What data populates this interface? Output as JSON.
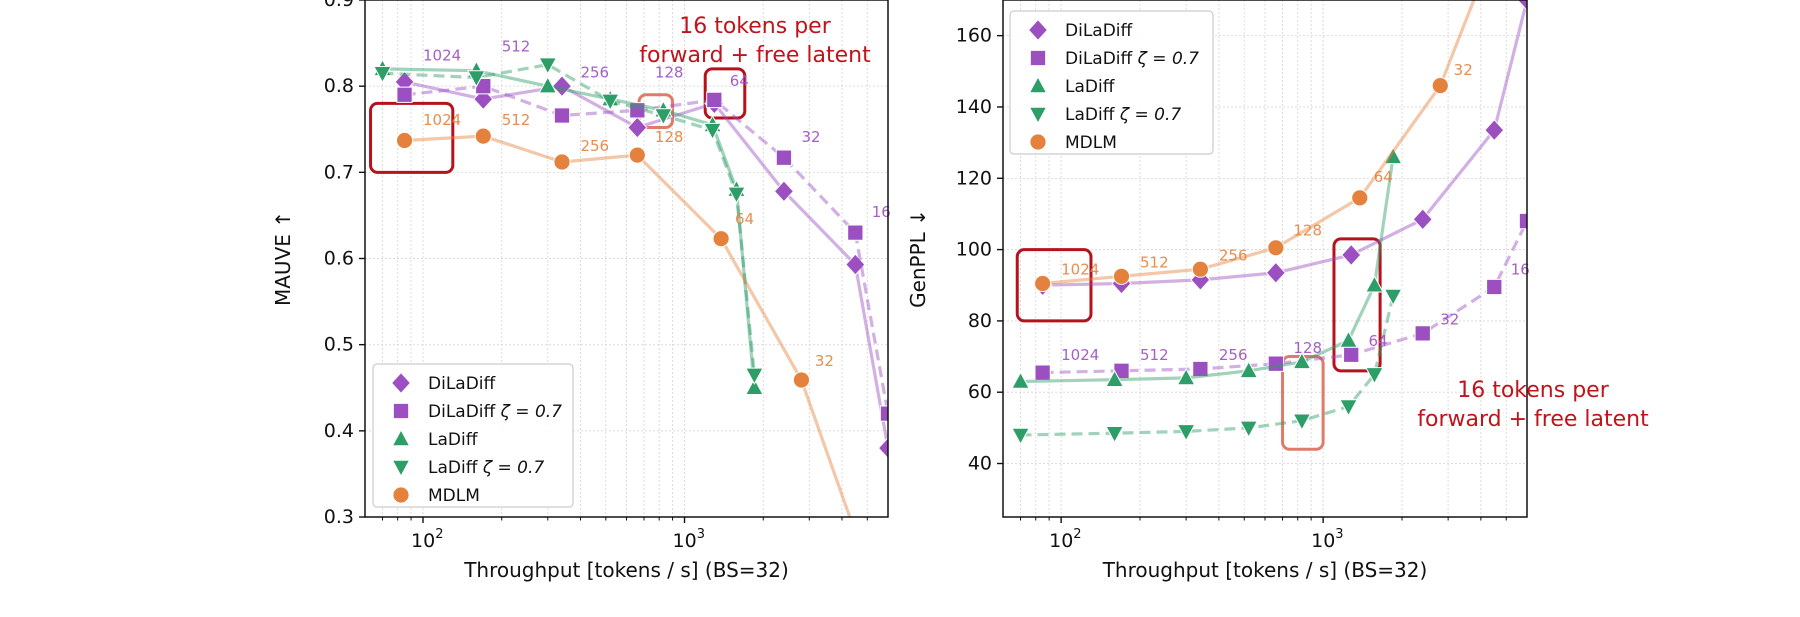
{
  "chart_data": [
    {
      "type": "line",
      "xscale": "log",
      "xlim": [
        60,
        6000
      ],
      "ylim": [
        0.3,
        0.9
      ],
      "xlabel": "Throughput [tokens / s]  (BS=32)",
      "ylabel": "MAUVE ↑",
      "xticks": [
        {
          "v": 100,
          "base": "10",
          "exp": "2"
        },
        {
          "v": 1000,
          "base": "10",
          "exp": "3"
        }
      ],
      "yticks": [
        0.3,
        0.4,
        0.5,
        0.6,
        0.7,
        0.8,
        0.9
      ],
      "grid": true,
      "legend_position": "bottom-left",
      "series": [
        {
          "name": "DiLaDiff",
          "name_suffix": "",
          "marker": "diamond",
          "color": "#9b4fc0",
          "dash": false,
          "x": [
            85,
            170,
            340,
            660,
            1300,
            2400,
            4500,
            6000
          ],
          "y": [
            0.805,
            0.785,
            0.8,
            0.752,
            0.78,
            0.678,
            0.593,
            0.38
          ]
        },
        {
          "name": "DiLaDiff",
          "name_suffix": "ζ = 0.7",
          "marker": "square",
          "color": "#9b4fc0",
          "dash": true,
          "x": [
            85,
            170,
            340,
            660,
            1300,
            2400,
            4500,
            6000
          ],
          "y": [
            0.79,
            0.8,
            0.766,
            0.772,
            0.784,
            0.717,
            0.63,
            0.42
          ]
        },
        {
          "name": "LaDiff",
          "name_suffix": "",
          "marker": "triangle-up",
          "color": "#2e9e68",
          "dash": false,
          "x": [
            70,
            160,
            300,
            520,
            830,
            1280,
            1580,
            1850
          ],
          "y": [
            0.82,
            0.818,
            0.8,
            0.785,
            0.772,
            0.755,
            0.68,
            0.45
          ]
        },
        {
          "name": "LaDiff",
          "name_suffix": "ζ = 0.7",
          "marker": "triangle-down",
          "color": "#2e9e68",
          "dash": true,
          "x": [
            70,
            160,
            300,
            520,
            830,
            1280,
            1580,
            1850
          ],
          "y": [
            0.815,
            0.81,
            0.825,
            0.783,
            0.766,
            0.749,
            0.675,
            0.465
          ]
        },
        {
          "name": "MDLM",
          "name_suffix": "",
          "marker": "circle",
          "color": "#e4823d",
          "dash": false,
          "x": [
            85,
            170,
            340,
            660,
            1380,
            2800,
            4400
          ],
          "y": [
            0.737,
            0.742,
            0.712,
            0.72,
            0.623,
            0.459,
            0.29
          ]
        }
      ],
      "point_labels": [
        {
          "text": "1024",
          "x": 100,
          "y": 0.83,
          "color": "#9b4fc0"
        },
        {
          "text": "512",
          "x": 200,
          "y": 0.84,
          "color": "#9b4fc0"
        },
        {
          "text": "256",
          "x": 400,
          "y": 0.81,
          "color": "#9b4fc0"
        },
        {
          "text": "128",
          "x": 770,
          "y": 0.81,
          "color": "#9b4fc0"
        },
        {
          "text": "64",
          "x": 1490,
          "y": 0.8,
          "color": "#9b4fc0"
        },
        {
          "text": "32",
          "x": 2800,
          "y": 0.735,
          "color": "#9b4fc0"
        },
        {
          "text": "16",
          "x": 5200,
          "y": 0.648,
          "color": "#9b4fc0"
        },
        {
          "text": "1024",
          "x": 100,
          "y": 0.755,
          "color": "#e4823d"
        },
        {
          "text": "512",
          "x": 200,
          "y": 0.755,
          "color": "#e4823d"
        },
        {
          "text": "256",
          "x": 400,
          "y": 0.725,
          "color": "#e4823d"
        },
        {
          "text": "128",
          "x": 770,
          "y": 0.735,
          "color": "#e4823d"
        },
        {
          "text": "64",
          "x": 1560,
          "y": 0.64,
          "color": "#e4823d"
        },
        {
          "text": "32",
          "x": 3150,
          "y": 0.475,
          "color": "#e4823d"
        }
      ],
      "highlight_boxes": [
        {
          "x0": 63,
          "x1": 130,
          "y0": 0.7,
          "y1": 0.78,
          "color": "#b5121b"
        },
        {
          "x0": 670,
          "x1": 900,
          "y0": 0.752,
          "y1": 0.79,
          "color": "#e07a6a"
        },
        {
          "x0": 1200,
          "x1": 1700,
          "y0": 0.763,
          "y1": 0.82,
          "color": "#b5121b"
        }
      ],
      "annotation": {
        "lines": [
          "16 tokens per",
          "forward + free latent"
        ],
        "color": "#c0141c",
        "position": "top-right"
      }
    },
    {
      "type": "line",
      "xscale": "log",
      "xlim": [
        60,
        6000
      ],
      "ylim": [
        25,
        170
      ],
      "xlabel": "Throughput [tokens / s]  (BS=32)",
      "ylabel": "GenPPL ↓",
      "xticks": [
        {
          "v": 100,
          "base": "10",
          "exp": "2"
        },
        {
          "v": 1000,
          "base": "10",
          "exp": "3"
        }
      ],
      "yticks": [
        40,
        60,
        80,
        100,
        120,
        140,
        160
      ],
      "grid": true,
      "legend_position": "top-left",
      "series": [
        {
          "name": "DiLaDiff",
          "name_suffix": "",
          "marker": "diamond",
          "color": "#9b4fc0",
          "dash": false,
          "x": [
            85,
            170,
            340,
            660,
            1280,
            2400,
            4500,
            6000
          ],
          "y": [
            90,
            90.5,
            91.5,
            93.5,
            98.5,
            108.5,
            133.5,
            170
          ]
        },
        {
          "name": "DiLaDiff",
          "name_suffix": "ζ = 0.7",
          "marker": "square",
          "color": "#9b4fc0",
          "dash": true,
          "x": [
            85,
            170,
            340,
            660,
            1280,
            2400,
            4500,
            6000
          ],
          "y": [
            65.5,
            66,
            66.5,
            68,
            70.5,
            76.5,
            89.5,
            108
          ]
        },
        {
          "name": "LaDiff",
          "name_suffix": "",
          "marker": "triangle-up",
          "color": "#2e9e68",
          "dash": false,
          "x": [
            70,
            160,
            300,
            520,
            830,
            1250,
            1570,
            1850
          ],
          "y": [
            63,
            63.5,
            64,
            66,
            68.5,
            74.5,
            90,
            126
          ]
        },
        {
          "name": "LaDiff",
          "name_suffix": "ζ = 0.7",
          "marker": "triangle-down",
          "color": "#2e9e68",
          "dash": true,
          "x": [
            70,
            160,
            300,
            520,
            830,
            1250,
            1570,
            1850
          ],
          "y": [
            48,
            48.5,
            49,
            50,
            52,
            56,
            65,
            87
          ]
        },
        {
          "name": "MDLM",
          "name_suffix": "",
          "marker": "circle",
          "color": "#e4823d",
          "dash": false,
          "x": [
            85,
            170,
            340,
            660,
            1380,
            2800,
            4000
          ],
          "y": [
            90.5,
            92.5,
            94.5,
            100.5,
            114.5,
            146,
            175
          ]
        }
      ],
      "point_labels": [
        {
          "text": "1024",
          "x": 100,
          "y": 93,
          "color": "#e4823d"
        },
        {
          "text": "512",
          "x": 200,
          "y": 95,
          "color": "#e4823d"
        },
        {
          "text": "256",
          "x": 400,
          "y": 97,
          "color": "#e4823d"
        },
        {
          "text": "128",
          "x": 770,
          "y": 104,
          "color": "#e4823d"
        },
        {
          "text": "64",
          "x": 1560,
          "y": 119,
          "color": "#e4823d"
        },
        {
          "text": "32",
          "x": 3150,
          "y": 149,
          "color": "#e4823d"
        },
        {
          "text": "1024",
          "x": 100,
          "y": 69,
          "color": "#9b4fc0"
        },
        {
          "text": "512",
          "x": 200,
          "y": 69,
          "color": "#9b4fc0"
        },
        {
          "text": "256",
          "x": 400,
          "y": 69,
          "color": "#9b4fc0"
        },
        {
          "text": "128",
          "x": 770,
          "y": 71,
          "color": "#9b4fc0"
        },
        {
          "text": "64",
          "x": 1490,
          "y": 73,
          "color": "#9b4fc0"
        },
        {
          "text": "32",
          "x": 2800,
          "y": 79,
          "color": "#9b4fc0"
        },
        {
          "text": "16",
          "x": 5200,
          "y": 93,
          "color": "#9b4fc0"
        }
      ],
      "highlight_boxes": [
        {
          "x0": 68,
          "x1": 130,
          "y0": 80,
          "y1": 100,
          "color": "#b5121b"
        },
        {
          "x0": 700,
          "x1": 1000,
          "y0": 44,
          "y1": 70,
          "color": "#e07a6a"
        },
        {
          "x0": 1100,
          "x1": 1650,
          "y0": 66,
          "y1": 103,
          "color": "#b5121b"
        }
      ],
      "annotation": {
        "lines": [
          "16 tokens per",
          "forward + free latent"
        ],
        "color": "#c0141c",
        "position": "lower-right"
      }
    }
  ]
}
